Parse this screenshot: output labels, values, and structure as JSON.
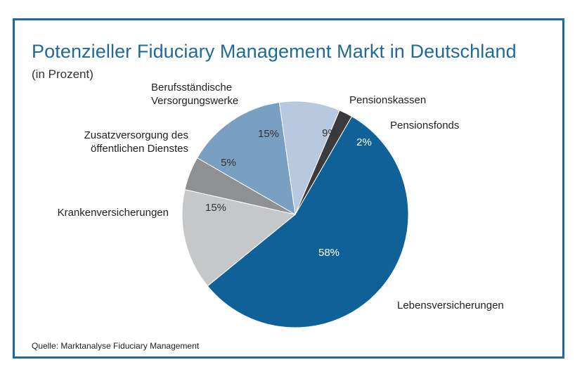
{
  "title": "Potenzieller Fiduciary Management Markt in Deutschland",
  "subtitle": "(in Prozent)",
  "source": "Quelle:  Marktanalyse Fiduciary Management",
  "chart_data": {
    "type": "pie",
    "title": "Potenzieller Fiduciary Management Markt in Deutschland",
    "subtitle": "(in Prozent)",
    "unit": "%",
    "slices": [
      {
        "label": "Lebensversicherungen",
        "value": 58,
        "value_label": "58%",
        "color": "#0f6198",
        "text_color": "#ffffff"
      },
      {
        "label": "Krankenversicherungen",
        "value": 15,
        "value_label": "15%",
        "color": "#c6c7c9",
        "text_color": "#333333"
      },
      {
        "label": "Zusatzversorgung des öffentlichen Dienstes",
        "label_lines": [
          "Zusatzversorgung des",
          "öffentlichen Dienstes"
        ],
        "value": 5,
        "value_label": "5%",
        "color": "#8f9092",
        "text_color": "#333333"
      },
      {
        "label": "Berufsständische Versorgungswerke",
        "label_lines": [
          "Berufsständische",
          "Versorgungswerke"
        ],
        "value": 15,
        "value_label": "15%",
        "color": "#799fc3",
        "text_color": "#333333"
      },
      {
        "label": "Pensionskassen",
        "value": 9,
        "value_label": "9%",
        "color": "#b8c9df",
        "text_color": "#333333"
      },
      {
        "label": "Pensionsfonds",
        "value": 2,
        "value_label": "2%",
        "color": "#3b3b3d",
        "text_color": "#ffffff"
      }
    ]
  }
}
